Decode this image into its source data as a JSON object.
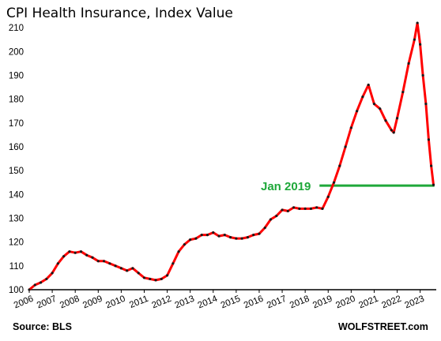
{
  "chart_data": {
    "type": "line",
    "title": "CPI Health Insurance, Index Value",
    "xlabel": "",
    "ylabel": "",
    "source": "Source: BLS",
    "brand": "WOLFSTREET.com",
    "xlim": [
      2006.0,
      2023.7
    ],
    "ylim": [
      100,
      215
    ],
    "x_ticks": [
      "2006",
      "2007",
      "2008",
      "2009",
      "2010",
      "2011",
      "2012",
      "2013",
      "2014",
      "2015",
      "2016",
      "2017",
      "2018",
      "2019",
      "2020",
      "2021",
      "2022",
      "2023"
    ],
    "y_ticks": [
      100,
      110,
      120,
      130,
      140,
      150,
      160,
      170,
      180,
      190,
      200,
      210
    ],
    "grid": false,
    "series": [
      {
        "color": "#ff0000",
        "marker_color": "#1a1a1a",
        "points": [
          [
            2006.0,
            100.0
          ],
          [
            2006.25,
            102.0
          ],
          [
            2006.5,
            103.0
          ],
          [
            2006.75,
            104.5
          ],
          [
            2007.0,
            107.0
          ],
          [
            2007.25,
            111.0
          ],
          [
            2007.5,
            114.0
          ],
          [
            2007.75,
            116.0
          ],
          [
            2008.0,
            115.5
          ],
          [
            2008.25,
            116.0
          ],
          [
            2008.5,
            114.5
          ],
          [
            2008.75,
            113.5
          ],
          [
            2009.0,
            112.0
          ],
          [
            2009.25,
            112.0
          ],
          [
            2009.5,
            111.0
          ],
          [
            2009.75,
            110.0
          ],
          [
            2010.0,
            109.0
          ],
          [
            2010.25,
            108.0
          ],
          [
            2010.5,
            109.0
          ],
          [
            2010.75,
            107.0
          ],
          [
            2011.0,
            105.0
          ],
          [
            2011.25,
            104.5
          ],
          [
            2011.5,
            104.0
          ],
          [
            2011.75,
            104.5
          ],
          [
            2012.0,
            106.0
          ],
          [
            2012.25,
            111.0
          ],
          [
            2012.5,
            116.0
          ],
          [
            2012.75,
            119.0
          ],
          [
            2013.0,
            121.0
          ],
          [
            2013.25,
            121.5
          ],
          [
            2013.5,
            123.0
          ],
          [
            2013.75,
            123.0
          ],
          [
            2014.0,
            124.0
          ],
          [
            2014.25,
            122.5
          ],
          [
            2014.5,
            123.0
          ],
          [
            2014.75,
            122.0
          ],
          [
            2015.0,
            121.5
          ],
          [
            2015.25,
            121.5
          ],
          [
            2015.5,
            122.0
          ],
          [
            2015.75,
            123.0
          ],
          [
            2016.0,
            123.5
          ],
          [
            2016.25,
            126.0
          ],
          [
            2016.5,
            129.5
          ],
          [
            2016.75,
            131.0
          ],
          [
            2017.0,
            133.5
          ],
          [
            2017.25,
            133.0
          ],
          [
            2017.5,
            134.5
          ],
          [
            2017.75,
            134.0
          ],
          [
            2018.0,
            134.0
          ],
          [
            2018.25,
            134.0
          ],
          [
            2018.5,
            134.5
          ],
          [
            2018.75,
            134.0
          ],
          [
            2019.0,
            139.0
          ],
          [
            2019.25,
            145.0
          ],
          [
            2019.5,
            152.0
          ],
          [
            2019.75,
            160.0
          ],
          [
            2020.0,
            168.0
          ],
          [
            2020.25,
            175.0
          ],
          [
            2020.5,
            181.0
          ],
          [
            2020.75,
            186.0
          ],
          [
            2021.0,
            178.0
          ],
          [
            2021.25,
            176.0
          ],
          [
            2021.5,
            171.0
          ],
          [
            2021.75,
            167.0
          ],
          [
            2021.85,
            166.0
          ],
          [
            2022.0,
            172.0
          ],
          [
            2022.25,
            183.0
          ],
          [
            2022.5,
            195.0
          ],
          [
            2022.75,
            205.0
          ],
          [
            2022.88,
            212.0
          ],
          [
            2023.0,
            203.0
          ],
          [
            2023.12,
            190.0
          ],
          [
            2023.25,
            178.0
          ],
          [
            2023.37,
            163.0
          ],
          [
            2023.48,
            152.0
          ],
          [
            2023.58,
            144.0
          ]
        ]
      }
    ],
    "annotation": {
      "text": "Jan 2019",
      "color": "#1fa83a",
      "line_value": 143.7,
      "line_x_start": 2019.0,
      "line_x_end": 2023.62
    }
  }
}
